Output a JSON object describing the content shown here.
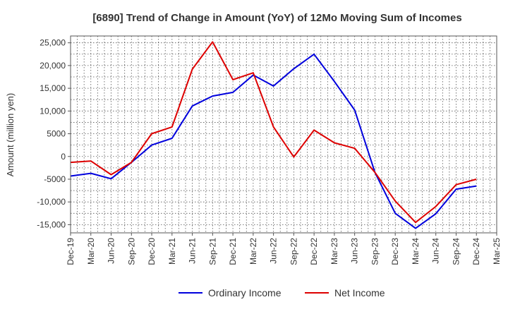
{
  "chart_data": {
    "type": "line",
    "title": "[6890]  Trend of Change in Amount (YoY) of 12Mo Moving Sum of Incomes",
    "xlabel": "",
    "ylabel": "Amount (million yen)",
    "ylim": [
      -16800,
      26500
    ],
    "yticks": [
      25000,
      20000,
      15000,
      10000,
      5000,
      0,
      -5000,
      -10000,
      -15000
    ],
    "ytick_labels": [
      "25,000",
      "20,000",
      "15,000",
      "10,000",
      "5000",
      "0",
      "-5000",
      "-10,000",
      "-15,000"
    ],
    "categories": [
      "Dec-19",
      "Mar-20",
      "Jun-20",
      "Sep-20",
      "Dec-20",
      "Mar-21",
      "Jun-21",
      "Sep-21",
      "Dec-21",
      "Mar-22",
      "Jun-22",
      "Sep-22",
      "Dec-22",
      "Mar-23",
      "Jun-23",
      "Sep-23",
      "Dec-23",
      "Mar-24",
      "Jun-24",
      "Sep-24",
      "Dec-24",
      "Mar-25"
    ],
    "grid": true,
    "legend_position": "bottom",
    "series": [
      {
        "name": "Ordinary Income",
        "color": "#0000dd",
        "values": [
          -4300,
          -3700,
          -4900,
          -1300,
          2500,
          4000,
          11100,
          13300,
          14100,
          17900,
          15500,
          19300,
          22500,
          16500,
          10200,
          -3500,
          -12500,
          -15800,
          -12600,
          -7200,
          -6500,
          null
        ]
      },
      {
        "name": "Net Income",
        "color": "#dd0000",
        "values": [
          -1300,
          -1000,
          -4000,
          -1300,
          5000,
          6500,
          19200,
          25200,
          16900,
          18400,
          6500,
          -100,
          5800,
          3000,
          1800,
          -3500,
          -9800,
          -14500,
          -11000,
          -6200,
          -5000,
          null
        ]
      }
    ]
  }
}
